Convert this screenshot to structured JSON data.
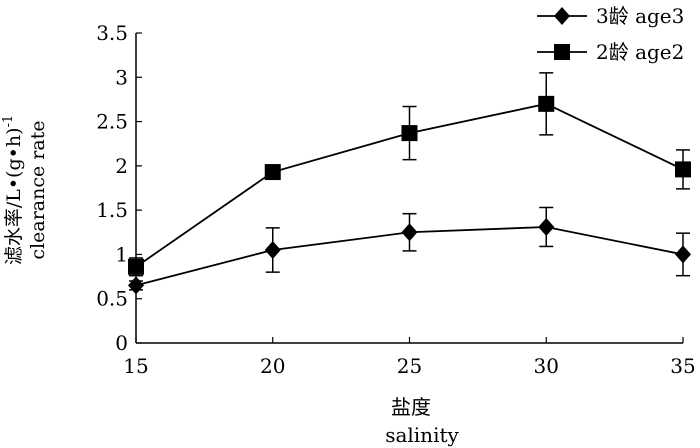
{
  "chart_data": {
    "type": "line",
    "x": [
      15,
      20,
      25,
      30,
      35
    ],
    "xlim": [
      15,
      35
    ],
    "ylim": [
      0,
      3.5
    ],
    "xticks": [
      "15",
      "20",
      "25",
      "30",
      "35"
    ],
    "yticks": [
      "0",
      "0.5",
      "1",
      "1.5",
      "2",
      "2.5",
      "3",
      "3.5"
    ],
    "xlabel_cn": "盐度",
    "xlabel_en": "salinity",
    "ylabel_cn": "滤水率/L•(g•h)",
    "ylabel_sup": "-1",
    "ylabel_en": "clearance rate",
    "legend_position": "top-right",
    "series": [
      {
        "name": "3龄 age3",
        "marker": "diamond",
        "values": [
          0.65,
          1.05,
          1.25,
          1.31,
          1.0
        ],
        "errors": [
          0.05,
          0.25,
          0.21,
          0.22,
          0.24
        ]
      },
      {
        "name": "2龄 age2",
        "marker": "square",
        "values": [
          0.86,
          1.93,
          2.37,
          2.7,
          1.96
        ],
        "errors": [
          0.1,
          0.05,
          0.3,
          0.35,
          0.22
        ]
      }
    ]
  }
}
